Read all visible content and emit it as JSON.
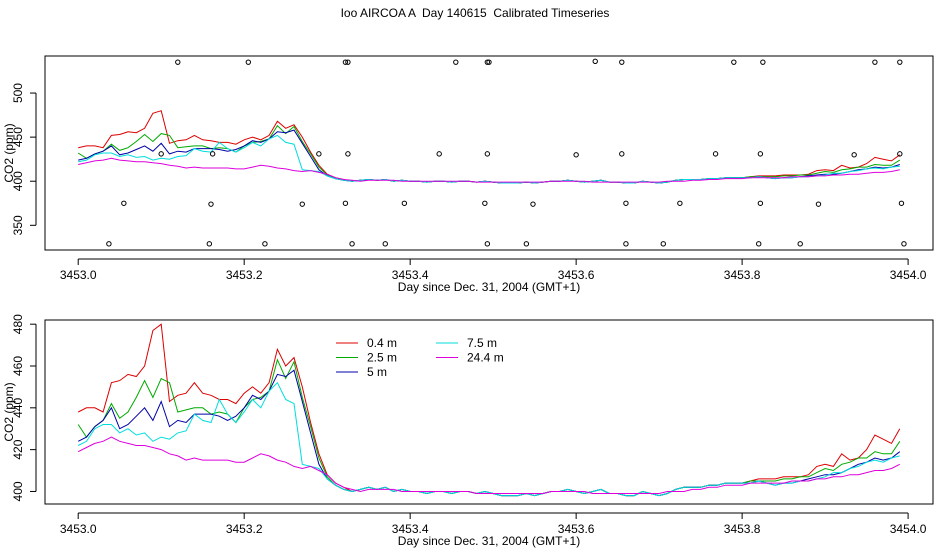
{
  "title": "Ioo AIRCOA A  Day 140615  Calibrated Timeseries",
  "chart_data": [
    {
      "type": "scatter+line",
      "xlabel": "Day since Dec. 31, 2004 (GMT+1)",
      "ylabel": "CO2 (ppm)",
      "xlim": [
        3452.96,
        3454.03
      ],
      "ylim": [
        322,
        542
      ],
      "xticks": [
        3453.0,
        3453.2,
        3453.4,
        3453.6,
        3453.8,
        3454.0
      ],
      "xtick_labels": [
        "3453.0",
        "3453.2",
        "3453.4",
        "3453.6",
        "3453.8",
        "3454.0"
      ],
      "yticks": [
        350,
        400,
        450,
        500
      ],
      "ytick_labels": [
        "350",
        "400",
        "450",
        "500"
      ],
      "legend": "none",
      "x": [
        3453.0,
        3453.01,
        3453.02,
        3453.03,
        3453.04,
        3453.05,
        3453.06,
        3453.07,
        3453.08,
        3453.09,
        3453.1,
        3453.11,
        3453.12,
        3453.13,
        3453.14,
        3453.15,
        3453.16,
        3453.17,
        3453.18,
        3453.19,
        3453.2,
        3453.21,
        3453.22,
        3453.23,
        3453.24,
        3453.25,
        3453.26,
        3453.27,
        3453.28,
        3453.29,
        3453.3,
        3453.31,
        3453.32,
        3453.33,
        3453.34,
        3453.35,
        3453.36,
        3453.37,
        3453.38,
        3453.39,
        3453.4,
        3453.41,
        3453.42,
        3453.43,
        3453.44,
        3453.45,
        3453.46,
        3453.47,
        3453.48,
        3453.49,
        3453.5,
        3453.51,
        3453.52,
        3453.53,
        3453.54,
        3453.55,
        3453.56,
        3453.57,
        3453.58,
        3453.59,
        3453.6,
        3453.61,
        3453.62,
        3453.63,
        3453.64,
        3453.65,
        3453.66,
        3453.67,
        3453.68,
        3453.69,
        3453.7,
        3453.71,
        3453.72,
        3453.73,
        3453.74,
        3453.75,
        3453.76,
        3453.77,
        3453.78,
        3453.79,
        3453.8,
        3453.81,
        3453.82,
        3453.83,
        3453.84,
        3453.85,
        3453.86,
        3453.87,
        3453.88,
        3453.89,
        3453.9,
        3453.91,
        3453.92,
        3453.93,
        3453.94,
        3453.95,
        3453.96,
        3453.97,
        3453.98,
        3453.99
      ],
      "series": [
        {
          "name": "0.4 m",
          "color": "#dd0000",
          "values": [
            438,
            440,
            440,
            438,
            452,
            453,
            456,
            455,
            460,
            477,
            480,
            443,
            446,
            447,
            452,
            447,
            446,
            444,
            444,
            442,
            447,
            450,
            447,
            452,
            468,
            460,
            464,
            450,
            433,
            418,
            408,
            404,
            402,
            400,
            401,
            402,
            401,
            402,
            400,
            401,
            400,
            400,
            399,
            400,
            400,
            399,
            400,
            400,
            399,
            400,
            399,
            398,
            398,
            398,
            399,
            398,
            399,
            400,
            400,
            401,
            400,
            399,
            400,
            401,
            399,
            399,
            398,
            398,
            400,
            399,
            398,
            399,
            401,
            402,
            402,
            402,
            403,
            403,
            404,
            404,
            404,
            405,
            406,
            406,
            406,
            407,
            407,
            407,
            408,
            412,
            413,
            412,
            418,
            415,
            416,
            420,
            427,
            425,
            423,
            430
          ]
        },
        {
          "name": "2.5 m",
          "color": "#00aa00",
          "values": [
            432,
            426,
            431,
            434,
            442,
            435,
            438,
            445,
            453,
            445,
            454,
            452,
            438,
            439,
            440,
            440,
            437,
            438,
            437,
            433,
            440,
            444,
            445,
            448,
            463,
            454,
            462,
            445,
            431,
            416,
            407,
            403,
            401,
            400,
            401,
            402,
            401,
            402,
            400,
            401,
            400,
            400,
            399,
            400,
            400,
            399,
            400,
            400,
            399,
            400,
            399,
            398,
            398,
            398,
            399,
            398,
            399,
            400,
            400,
            401,
            400,
            399,
            400,
            401,
            399,
            399,
            398,
            398,
            400,
            399,
            398,
            399,
            401,
            402,
            402,
            402,
            403,
            403,
            404,
            404,
            404,
            405,
            405,
            405,
            405,
            406,
            406,
            407,
            407,
            409,
            411,
            410,
            413,
            414,
            416,
            416,
            419,
            418,
            418,
            424
          ]
        },
        {
          "name": "5 m",
          "color": "#0000aa",
          "values": [
            424,
            426,
            431,
            434,
            440,
            430,
            432,
            436,
            440,
            434,
            443,
            431,
            434,
            433,
            437,
            437,
            437,
            436,
            434,
            436,
            440,
            446,
            444,
            448,
            456,
            455,
            458,
            443,
            428,
            413,
            406,
            403,
            401,
            400,
            401,
            402,
            401,
            402,
            400,
            401,
            400,
            400,
            399,
            400,
            400,
            399,
            400,
            400,
            399,
            400,
            399,
            398,
            398,
            398,
            399,
            398,
            399,
            400,
            400,
            401,
            400,
            399,
            400,
            401,
            399,
            399,
            398,
            398,
            400,
            399,
            398,
            399,
            401,
            402,
            402,
            402,
            403,
            403,
            404,
            404,
            404,
            404,
            405,
            404,
            403,
            404,
            404,
            405,
            406,
            407,
            408,
            408,
            409,
            411,
            413,
            414,
            416,
            415,
            416,
            419
          ]
        },
        {
          "name": "7.5 m",
          "color": "#00dddd",
          "values": [
            422,
            424,
            430,
            432,
            432,
            428,
            430,
            427,
            428,
            424,
            426,
            425,
            428,
            429,
            437,
            434,
            433,
            444,
            437,
            433,
            438,
            444,
            440,
            448,
            452,
            444,
            442,
            413,
            412,
            411,
            406,
            403,
            401,
            400,
            401,
            402,
            401,
            402,
            400,
            401,
            400,
            400,
            399,
            400,
            400,
            399,
            400,
            400,
            399,
            400,
            399,
            398,
            398,
            398,
            399,
            398,
            399,
            400,
            400,
            401,
            400,
            399,
            400,
            401,
            399,
            399,
            398,
            398,
            400,
            399,
            398,
            399,
            401,
            402,
            402,
            402,
            403,
            403,
            404,
            404,
            404,
            404,
            405,
            404,
            403,
            404,
            404,
            405,
            405,
            406,
            407,
            409,
            409,
            411,
            412,
            414,
            415,
            414,
            416,
            417
          ]
        },
        {
          "name": "24.4 m",
          "color": "#dd00dd",
          "values": [
            419,
            421,
            423,
            424,
            426,
            424,
            423,
            422,
            422,
            421,
            420,
            418,
            417,
            415,
            416,
            415,
            415,
            415,
            415,
            414,
            414,
            416,
            418,
            417,
            415,
            414,
            412,
            411,
            412,
            410,
            408,
            404,
            402,
            401,
            400,
            401,
            401,
            401,
            401,
            400,
            400,
            400,
            400,
            400,
            400,
            400,
            400,
            400,
            399,
            399,
            399,
            399,
            399,
            399,
            399,
            399,
            399,
            400,
            400,
            400,
            400,
            400,
            399,
            399,
            399,
            399,
            399,
            399,
            399,
            399,
            399,
            400,
            400,
            400,
            401,
            401,
            402,
            402,
            403,
            403,
            403,
            404,
            404,
            404,
            404,
            404,
            405,
            405,
            405,
            406,
            406,
            407,
            407,
            408,
            408,
            409,
            410,
            410,
            411,
            413
          ]
        }
      ],
      "calibration_points": {
        "color": "#000000",
        "x": [
          3453.037,
          3453.055,
          3453.1,
          3453.12,
          3453.158,
          3453.16,
          3453.162,
          3453.205,
          3453.225,
          3453.27,
          3453.29,
          3453.322,
          3453.322,
          3453.325,
          3453.325,
          3453.33,
          3453.37,
          3453.393,
          3453.435,
          3453.455,
          3453.49,
          3453.493,
          3453.493,
          3453.493,
          3453.495,
          3453.54,
          3453.548,
          3453.6,
          3453.623,
          3453.655,
          3453.655,
          3453.66,
          3453.66,
          3453.705,
          3453.725,
          3453.768,
          3453.79,
          3453.82,
          3453.822,
          3453.822,
          3453.825,
          3453.87,
          3453.892,
          3453.935,
          3453.96,
          3453.99,
          3453.99,
          3453.992,
          3453.995
        ],
        "y": [
          329,
          375,
          431,
          535,
          329,
          374,
          431,
          535,
          329,
          374,
          431,
          535,
          375,
          431,
          535,
          329,
          329,
          375,
          431,
          535,
          375,
          329,
          431,
          535,
          535,
          329,
          374,
          430,
          536,
          431,
          535,
          375,
          329,
          329,
          375,
          431,
          535,
          329,
          375,
          431,
          535,
          329,
          374,
          430,
          535,
          535,
          431,
          375,
          329
        ]
      }
    },
    {
      "type": "line",
      "xlabel": "Day since Dec. 31, 2004 (GMT+1)",
      "ylabel": "CO2 (ppm)",
      "xlim": [
        3452.96,
        3454.03
      ],
      "ylim": [
        394,
        482
      ],
      "xticks": [
        3453.0,
        3453.2,
        3453.4,
        3453.6,
        3453.8,
        3454.0
      ],
      "xtick_labels": [
        "3453.0",
        "3453.2",
        "3453.4",
        "3453.6",
        "3453.8",
        "3454.0"
      ],
      "yticks": [
        400,
        420,
        440,
        460,
        480
      ],
      "ytick_labels": [
        "400",
        "420",
        "440",
        "460",
        "480"
      ],
      "legend": "top-left",
      "legend_entries": [
        "0.4 m",
        "2.5 m",
        "5 m",
        "7.5 m",
        "24.4 m"
      ],
      "same_series_as_top": true
    }
  ]
}
